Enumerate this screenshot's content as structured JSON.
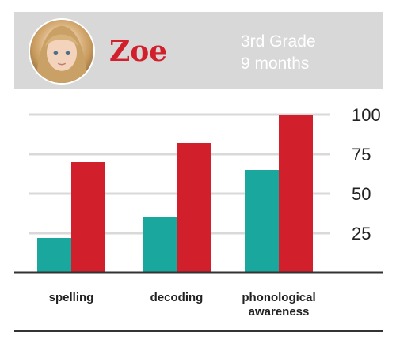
{
  "header": {
    "name": "Zoe",
    "grade": "3rd Grade",
    "duration": "9 months"
  },
  "colors": {
    "series_before": "#1aa89e",
    "series_after": "#d11f2c",
    "grid": "#d9d9d9",
    "axis": "#333333"
  },
  "chart_data": {
    "type": "bar",
    "categories": [
      "spelling",
      "decoding",
      "phonological awareness"
    ],
    "category_lines": [
      [
        "spelling"
      ],
      [
        "decoding"
      ],
      [
        "phonological",
        "awareness"
      ]
    ],
    "series": [
      {
        "values": [
          22,
          35,
          65
        ]
      },
      {
        "values": [
          70,
          82,
          100
        ]
      }
    ],
    "ylim": [
      0,
      100
    ],
    "yticks": [
      25,
      50,
      75,
      100
    ],
    "grid": true,
    "title": "",
    "xlabel": "",
    "ylabel": ""
  }
}
